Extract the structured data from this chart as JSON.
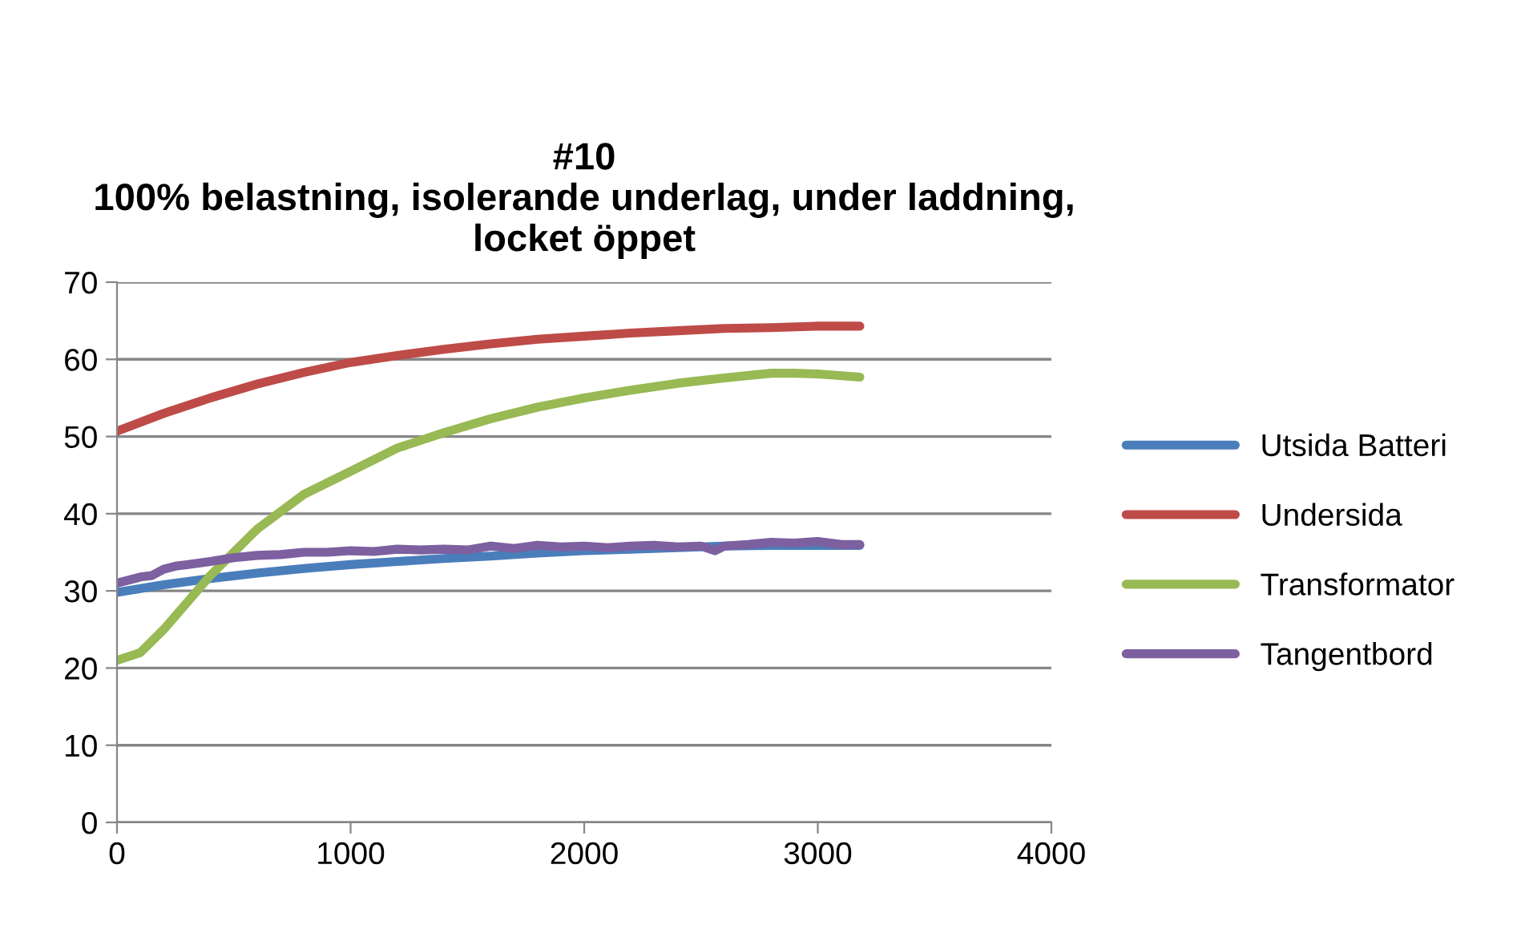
{
  "chart_data": {
    "type": "line",
    "title": "#10\n100% belastning, isolerande underlag, under laddning,\nlocket öppet",
    "xlim": [
      0,
      4000
    ],
    "xticks": [
      0,
      1000,
      2000,
      3000,
      4000
    ],
    "ylim": [
      0,
      70
    ],
    "yticks": [
      0,
      10,
      20,
      30,
      40,
      50,
      60,
      70
    ],
    "grid": "y",
    "legend": "right",
    "marker": "none",
    "line_style": "solid",
    "series": [
      {
        "name": "Utsida Batteri",
        "color": "#4a7ebb",
        "x": [
          0,
          200,
          400,
          600,
          800,
          1000,
          1200,
          1400,
          1600,
          1800,
          2000,
          2200,
          2400,
          2600,
          2800,
          3000,
          3180
        ],
        "values": [
          29.8,
          30.8,
          31.6,
          32.3,
          32.9,
          33.4,
          33.8,
          34.2,
          34.5,
          34.9,
          35.2,
          35.4,
          35.6,
          35.8,
          35.9,
          35.9,
          35.9
        ]
      },
      {
        "name": "Undersida",
        "color": "#be4b48",
        "x": [
          0,
          200,
          400,
          600,
          800,
          1000,
          1200,
          1400,
          1600,
          1800,
          2000,
          2200,
          2400,
          2600,
          2800,
          3000,
          3180
        ],
        "values": [
          50.7,
          53,
          55,
          56.8,
          58.3,
          59.6,
          60.5,
          61.3,
          62,
          62.6,
          63,
          63.4,
          63.7,
          64,
          64.1,
          64.3,
          64.3
        ]
      },
      {
        "name": "Transformator",
        "color": "#98b954",
        "x": [
          0,
          100,
          200,
          300,
          400,
          500,
          600,
          800,
          1000,
          1200,
          1400,
          1600,
          1800,
          2000,
          2200,
          2400,
          2600,
          2800,
          2900,
          3000,
          3180
        ],
        "values": [
          21,
          22,
          25,
          28.5,
          32,
          35,
          38,
          42.5,
          45.5,
          48.5,
          50.5,
          52.3,
          53.8,
          55,
          56,
          56.9,
          57.6,
          58.2,
          58.2,
          58.1,
          57.7
        ]
      },
      {
        "name": "Tangentbord",
        "color": "#7d60a0",
        "x": [
          0,
          100,
          150,
          200,
          250,
          300,
          400,
          500,
          600,
          700,
          800,
          900,
          1000,
          1100,
          1200,
          1300,
          1400,
          1500,
          1600,
          1700,
          1800,
          1900,
          2000,
          2100,
          2200,
          2300,
          2400,
          2500,
          2560,
          2600,
          2700,
          2800,
          2900,
          3000,
          3100,
          3180
        ],
        "values": [
          31,
          31.8,
          32,
          32.8,
          33.2,
          33.4,
          33.8,
          34.3,
          34.6,
          34.7,
          35,
          35,
          35.2,
          35.1,
          35.4,
          35.3,
          35.4,
          35.3,
          35.8,
          35.5,
          35.9,
          35.7,
          35.8,
          35.6,
          35.8,
          35.9,
          35.7,
          35.8,
          35.2,
          35.8,
          36,
          36.3,
          36.2,
          36.4,
          36,
          36
        ]
      }
    ]
  }
}
